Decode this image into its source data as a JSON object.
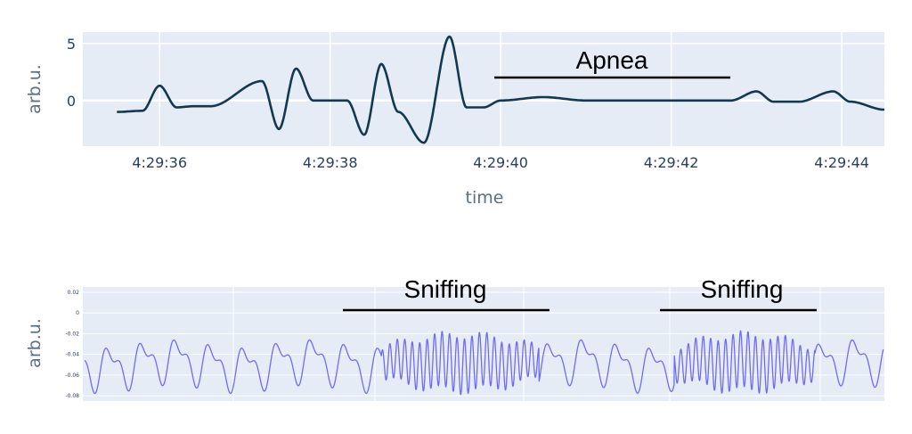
{
  "chart_data": [
    {
      "type": "line",
      "title": "",
      "xlabel": "time",
      "ylabel": "arb.u.",
      "x_tick_labels": [
        "4:29:36",
        "4:29:38",
        "4:29:40",
        "4:29:42",
        "4:29:44"
      ],
      "y_tick_labels": [
        "5",
        "0"
      ],
      "xlim": [
        "4:29:35.1",
        "4:29:44.5"
      ],
      "ylim": [
        -4,
        6
      ],
      "grid": true,
      "line_color": "#12394f",
      "background_color": "#e5ecf6",
      "series": [
        {
          "x_seconds": [
            35.5,
            35.8,
            36.0,
            36.2,
            36.4,
            36.6,
            37.2,
            37.4,
            37.6,
            37.8,
            38.2,
            38.4,
            38.6,
            38.8,
            39.1,
            39.4,
            39.6,
            39.8,
            40.0,
            40.5,
            41.0,
            42.0,
            42.7,
            43.0,
            43.2,
            43.5,
            43.9,
            44.1,
            44.5
          ],
          "values": [
            -1.0,
            -0.9,
            1.3,
            -0.6,
            -0.5,
            -0.5,
            1.7,
            -2.5,
            2.8,
            0.0,
            0.0,
            -3.0,
            3.2,
            -1.0,
            -3.7,
            5.6,
            -0.6,
            -0.6,
            0.0,
            0.3,
            0.0,
            0.0,
            0.0,
            0.8,
            -0.1,
            -0.1,
            0.8,
            -0.1,
            -0.8
          ]
        }
      ],
      "annotations": [
        {
          "text": "Apnea",
          "x_start": "4:29:39.9",
          "x_end": "4:29:42.7"
        }
      ]
    },
    {
      "type": "line",
      "title": "",
      "xlabel": "",
      "ylabel": "arb.u.",
      "y_tick_labels": [
        "0.02",
        "0",
        "-0.02",
        "-0.04",
        "-0.06",
        "-0.08"
      ],
      "ylim": [
        -0.085,
        0.025
      ],
      "grid": true,
      "line_color": "#6f6cf2",
      "background_color": "#e5ecf6",
      "series": [
        {
          "description_points": 2600
        }
      ],
      "annotations": [
        {
          "text": "Sniffing"
        },
        {
          "text": "Sniffing"
        }
      ]
    }
  ]
}
